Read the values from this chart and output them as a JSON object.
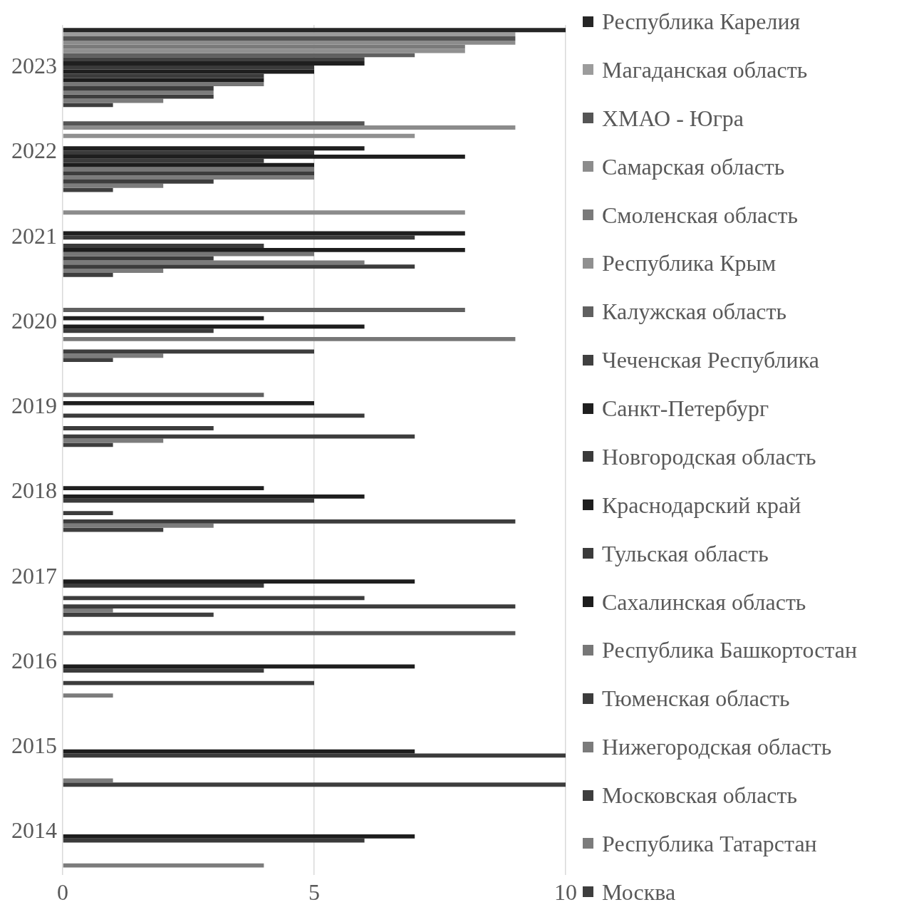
{
  "chart_data": {
    "type": "bar",
    "orientation": "horizontal",
    "categories": [
      "2023",
      "2022",
      "2021",
      "2020",
      "2019",
      "2018",
      "2017",
      "2016",
      "2015",
      "2014"
    ],
    "series": [
      {
        "name": "Республика Карелия",
        "color": "#262626",
        "values": [
          10,
          null,
          null,
          null,
          null,
          null,
          null,
          null,
          null,
          null
        ]
      },
      {
        "name": "Магаданская область",
        "color": "#9c9c9c",
        "values": [
          9,
          null,
          null,
          null,
          null,
          null,
          null,
          null,
          null,
          null
        ]
      },
      {
        "name": "ХМАО - Югра",
        "color": "#555555",
        "values": [
          9,
          6,
          null,
          null,
          null,
          null,
          null,
          9,
          null,
          null
        ]
      },
      {
        "name": "Самарская область",
        "color": "#8c8c8c",
        "values": [
          9,
          9,
          8,
          null,
          null,
          null,
          null,
          null,
          null,
          null
        ]
      },
      {
        "name": "Смоленская область",
        "color": "#7a7a7a",
        "values": [
          8,
          null,
          null,
          null,
          null,
          null,
          null,
          null,
          null,
          null
        ]
      },
      {
        "name": "Республика Крым",
        "color": "#909090",
        "values": [
          8,
          7,
          null,
          null,
          null,
          null,
          null,
          null,
          null,
          null
        ]
      },
      {
        "name": "Калужская область",
        "color": "#606060",
        "values": [
          7,
          null,
          null,
          8,
          4,
          null,
          null,
          null,
          null,
          null
        ]
      },
      {
        "name": "Чеченская Республика",
        "color": "#404040",
        "values": [
          6,
          null,
          null,
          null,
          null,
          null,
          null,
          null,
          null,
          null
        ]
      },
      {
        "name": "Санкт-Петербург",
        "color": "#1f1f1f",
        "values": [
          6,
          6,
          8,
          4,
          5,
          4,
          null,
          null,
          null,
          null
        ]
      },
      {
        "name": "Новгородская область",
        "color": "#3a3a3a",
        "values": [
          5,
          5,
          7,
          null,
          null,
          null,
          null,
          null,
          null,
          null
        ]
      },
      {
        "name": "Краснодарский край",
        "color": "#1e1e1e",
        "values": [
          5,
          8,
          null,
          6,
          null,
          6,
          7,
          7,
          7,
          7
        ]
      },
      {
        "name": "Тульская область",
        "color": "#3b3b3b",
        "values": [
          4,
          4,
          4,
          3,
          6,
          5,
          4,
          4,
          10,
          6
        ]
      },
      {
        "name": "Сахалинская область",
        "color": "#1d1d1d",
        "values": [
          4,
          5,
          8,
          null,
          null,
          null,
          null,
          null,
          null,
          null
        ]
      },
      {
        "name": "Республика Башкортостан",
        "color": "#777777",
        "values": [
          4,
          5,
          5,
          9,
          null,
          null,
          null,
          null,
          null,
          null
        ]
      },
      {
        "name": "Тюменская область",
        "color": "#3c3c3c",
        "values": [
          3,
          5,
          3,
          null,
          3,
          1,
          6,
          5,
          null,
          null
        ]
      },
      {
        "name": "Нижегородская область",
        "color": "#7b7b7b",
        "values": [
          3,
          5,
          6,
          null,
          null,
          null,
          null,
          null,
          null,
          null
        ]
      },
      {
        "name": "Московская область",
        "color": "#3d3d3d",
        "values": [
          3,
          3,
          7,
          5,
          7,
          9,
          9,
          null,
          null,
          null
        ]
      },
      {
        "name": "Республика Татарстан",
        "color": "#7c7c7c",
        "values": [
          2,
          2,
          2,
          2,
          2,
          3,
          1,
          1,
          1,
          4
        ]
      },
      {
        "name": "Москва",
        "color": "#3e3e3e",
        "values": [
          1,
          1,
          1,
          1,
          1,
          2,
          3,
          null,
          10,
          null
        ]
      }
    ],
    "xlim": [
      0,
      10
    ],
    "xticks": [
      0,
      5,
      10
    ],
    "grid": "x",
    "legend": "right"
  }
}
